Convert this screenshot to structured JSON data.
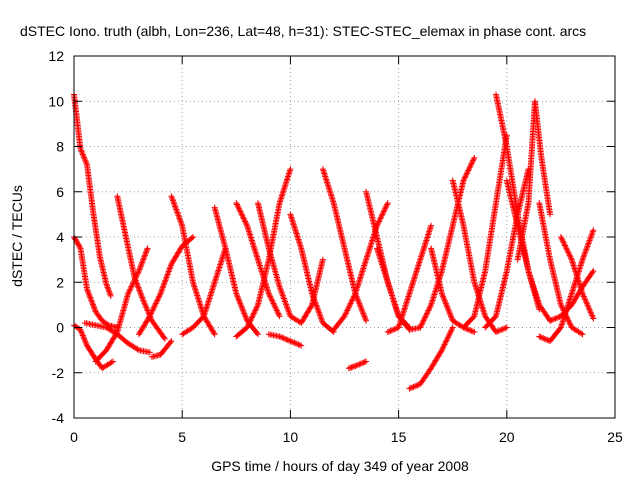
{
  "chart_data": {
    "type": "scatter",
    "title": "dSTEC Iono. truth (albh, Lon=236, Lat=48, h=31): STEC-STEC_elemax in phase cont. arcs",
    "xlabel": "GPS time / hours of day 349 of year 2008",
    "ylabel": "dSTEC  / TECUs",
    "xlim": [
      0,
      25
    ],
    "ylim": [
      -4,
      12
    ],
    "xticks": [
      0,
      5,
      10,
      15,
      20,
      25
    ],
    "yticks": [
      -4,
      -2,
      0,
      2,
      4,
      6,
      8,
      10,
      12
    ],
    "xtick_labels": [
      "0",
      "5",
      "10",
      "15",
      "20",
      "25"
    ],
    "ytick_labels": [
      "-4",
      "-2",
      "0",
      "2",
      "4",
      "6",
      "8",
      "10",
      "12"
    ],
    "grid": true,
    "marker": "plus",
    "color": "#ff0000",
    "series": [
      {
        "x": [
          0.0,
          0.3,
          0.6,
          0.9,
          1.2,
          1.5,
          1.7
        ],
        "y": [
          10.3,
          7.9,
          7.2,
          5.0,
          3.1,
          1.9,
          1.4
        ]
      },
      {
        "x": [
          0.0,
          0.3,
          0.6,
          1.0,
          1.3,
          1.6,
          2.0
        ],
        "y": [
          4.0,
          3.5,
          1.7,
          0.7,
          0.3,
          0.1,
          0.0
        ]
      },
      {
        "x": [
          0.0,
          0.3,
          0.6,
          1.0,
          1.3,
          1.8
        ],
        "y": [
          0.1,
          -0.1,
          -0.8,
          -1.4,
          -1.8,
          -1.5
        ]
      },
      {
        "x": [
          1.0,
          1.5,
          2.0,
          2.5,
          3.0,
          3.4
        ],
        "y": [
          -1.5,
          -1.0,
          -0.2,
          1.5,
          2.5,
          3.5
        ]
      },
      {
        "x": [
          2.0,
          2.4,
          2.8,
          3.2,
          3.6,
          4.2
        ],
        "y": [
          5.8,
          4.0,
          2.2,
          1.2,
          0.3,
          -0.5
        ]
      },
      {
        "x": [
          0.5,
          1.0,
          1.5,
          2.0,
          2.5,
          3.0,
          3.5
        ],
        "y": [
          0.2,
          0.1,
          0.0,
          -0.3,
          -0.7,
          -1.0,
          -1.1
        ]
      },
      {
        "x": [
          3.6,
          4.0,
          4.5
        ],
        "y": [
          -1.3,
          -1.2,
          -0.6
        ]
      },
      {
        "x": [
          3.0,
          3.5,
          4.0,
          4.5,
          5.0,
          5.5
        ],
        "y": [
          -0.3,
          0.5,
          1.5,
          2.8,
          3.6,
          4.0
        ]
      },
      {
        "x": [
          4.5,
          5.0,
          5.5,
          6.0,
          6.5
        ],
        "y": [
          5.8,
          4.5,
          2.0,
          0.5,
          -0.3
        ]
      },
      {
        "x": [
          5.0,
          5.5,
          6.0,
          6.5,
          7.0
        ],
        "y": [
          -0.3,
          0.0,
          0.5,
          2.0,
          3.5
        ]
      },
      {
        "x": [
          6.5,
          7.0,
          7.5,
          8.0,
          8.5
        ],
        "y": [
          5.3,
          3.5,
          1.5,
          0.3,
          -0.3
        ]
      },
      {
        "x": [
          7.5,
          8.0,
          8.5,
          9.0,
          9.5
        ],
        "y": [
          5.5,
          4.5,
          3.0,
          1.5,
          0.5
        ]
      },
      {
        "x": [
          7.5,
          8.0,
          8.5,
          9.0,
          9.5,
          10.0
        ],
        "y": [
          -0.4,
          0.0,
          1.0,
          3.0,
          5.5,
          7.0
        ]
      },
      {
        "x": [
          9.0,
          9.5,
          10.0,
          10.5
        ],
        "y": [
          -0.3,
          -0.4,
          -0.6,
          -0.8
        ]
      },
      {
        "x": [
          8.5,
          9.0,
          9.5,
          10.0,
          10.5,
          11.0,
          11.5
        ],
        "y": [
          5.5,
          3.5,
          1.8,
          0.5,
          0.2,
          1.0,
          3.0
        ]
      },
      {
        "x": [
          10.0,
          10.5,
          11.0,
          11.5,
          12.0
        ],
        "y": [
          5.0,
          3.5,
          1.5,
          0.2,
          -0.2
        ]
      },
      {
        "x": [
          11.5,
          12.0,
          12.5,
          13.0,
          13.5
        ],
        "y": [
          7.0,
          5.5,
          3.5,
          1.5,
          0.3
        ]
      },
      {
        "x": [
          12.0,
          12.5,
          13.0,
          13.5,
          14.0,
          14.5
        ],
        "y": [
          -0.1,
          0.5,
          1.5,
          3.0,
          4.5,
          5.5
        ]
      },
      {
        "x": [
          12.7,
          13.0,
          13.5
        ],
        "y": [
          -1.8,
          -1.7,
          -1.5
        ]
      },
      {
        "x": [
          13.5,
          14.0,
          14.5,
          15.0,
          15.5
        ],
        "y": [
          6.0,
          4.0,
          2.0,
          0.5,
          0.0
        ]
      },
      {
        "x": [
          14.0,
          14.5,
          15.0,
          15.5,
          16.0
        ],
        "y": [
          3.5,
          2.0,
          0.5,
          -0.1,
          0.0
        ]
      },
      {
        "x": [
          14.5,
          15.0,
          15.5,
          16.0,
          16.5
        ],
        "y": [
          -0.2,
          0.0,
          1.5,
          3.0,
          4.5
        ]
      },
      {
        "x": [
          15.5,
          16.0,
          16.5,
          17.0,
          17.5
        ],
        "y": [
          -2.7,
          -2.5,
          -1.8,
          -1.0,
          0.0
        ]
      },
      {
        "x": [
          16.0,
          16.5,
          17.0,
          17.5,
          18.0,
          18.5
        ],
        "y": [
          0.0,
          1.0,
          2.5,
          4.5,
          6.5,
          7.5
        ]
      },
      {
        "x": [
          16.5,
          17.0,
          17.5,
          18.0,
          18.5
        ],
        "y": [
          3.5,
          1.5,
          0.3,
          0.0,
          -0.2
        ]
      },
      {
        "x": [
          17.5,
          18.0,
          18.5,
          19.0,
          19.5,
          20.0
        ],
        "y": [
          6.5,
          4.5,
          2.0,
          0.5,
          -0.2,
          0.0
        ]
      },
      {
        "x": [
          18.0,
          18.5,
          19.0,
          19.5,
          20.0
        ],
        "y": [
          0.0,
          0.5,
          2.5,
          5.5,
          8.5
        ]
      },
      {
        "x": [
          19.5,
          20.0,
          20.5,
          21.0,
          21.5
        ],
        "y": [
          10.3,
          8.0,
          5.0,
          2.5,
          0.8
        ]
      },
      {
        "x": [
          19.0,
          19.5,
          20.0,
          20.5,
          21.0
        ],
        "y": [
          0.0,
          0.5,
          2.5,
          5.0,
          7.0
        ]
      },
      {
        "x": [
          20.0,
          20.5,
          21.0,
          21.5,
          22.0
        ],
        "y": [
          6.5,
          4.5,
          2.5,
          1.0,
          0.3
        ]
      },
      {
        "x": [
          20.5,
          21.0,
          21.3,
          21.6,
          22.0
        ],
        "y": [
          3.0,
          5.5,
          10.0,
          7.5,
          5.0
        ]
      },
      {
        "x": [
          21.5,
          22.0,
          22.5,
          23.0,
          23.5
        ],
        "y": [
          5.5,
          3.0,
          1.0,
          0.0,
          -0.3
        ]
      },
      {
        "x": [
          21.5,
          22.0,
          22.5,
          23.0,
          23.5,
          24.0
        ],
        "y": [
          -0.4,
          -0.6,
          0.0,
          1.5,
          3.0,
          4.3
        ]
      },
      {
        "x": [
          22.5,
          23.0,
          23.5,
          24.0
        ],
        "y": [
          4.0,
          3.0,
          1.5,
          0.4
        ]
      },
      {
        "x": [
          22.0,
          22.5,
          23.0,
          23.5,
          24.0
        ],
        "y": [
          0.3,
          0.5,
          1.0,
          1.8,
          2.5
        ]
      }
    ]
  }
}
